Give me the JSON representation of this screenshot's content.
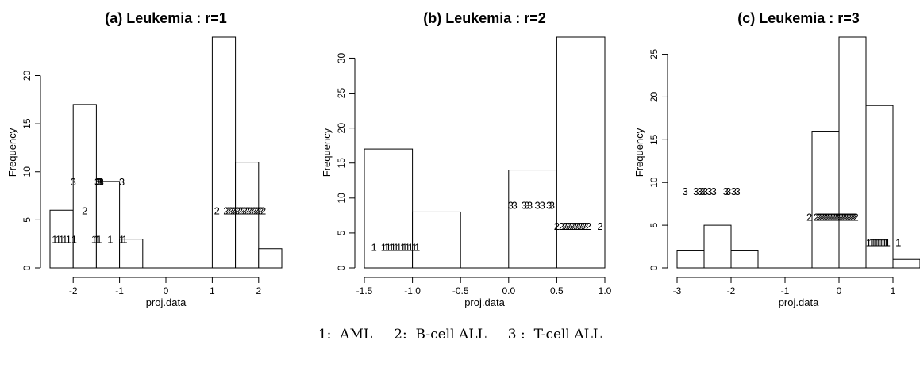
{
  "chart_data": [
    {
      "type": "bar",
      "title": "(a) Leukemia : r=1",
      "xlabel": "proj.data",
      "ylabel": "Frequency",
      "xlim": [
        -2.5,
        2.5
      ],
      "ylim": [
        0,
        24
      ],
      "xticks": [
        -2,
        -1,
        0,
        1,
        2
      ],
      "yticks": [
        0,
        5,
        10,
        15,
        20
      ],
      "bins": [
        {
          "x0": -2.5,
          "x1": -2.0,
          "count": 6
        },
        {
          "x0": -2.0,
          "x1": -1.5,
          "count": 17
        },
        {
          "x0": -1.5,
          "x1": -1.0,
          "count": 9
        },
        {
          "x0": -1.0,
          "x1": -0.5,
          "count": 3
        },
        {
          "x0": -0.5,
          "x1": 0.0,
          "count": 0
        },
        {
          "x0": 0.0,
          "x1": 0.5,
          "count": 0
        },
        {
          "x0": 0.5,
          "x1": 1.0,
          "count": 0
        },
        {
          "x0": 1.0,
          "x1": 1.5,
          "count": 24
        },
        {
          "x0": 1.5,
          "x1": 2.0,
          "count": 11
        },
        {
          "x0": 2.0,
          "x1": 2.5,
          "count": 2
        }
      ],
      "point_labels": [
        {
          "label": "1",
          "y": 3,
          "x": [
            -2.4,
            -2.32,
            -2.25,
            -2.18,
            -2.1,
            -1.98,
            -1.55,
            -1.5,
            -1.47,
            -1.44,
            -1.2,
            -0.95,
            -0.89
          ]
        },
        {
          "label": "2",
          "y": 6,
          "x": [
            -1.75
          ]
        },
        {
          "label": "3",
          "y": 9,
          "x": [
            -2.0,
            -1.48,
            -1.45,
            -1.43,
            -1.4,
            -0.95
          ]
        },
        {
          "label": "2",
          "y": 6,
          "x": [
            1.1,
            1.3,
            1.35,
            1.4,
            1.45,
            1.5,
            1.55,
            1.6,
            1.65,
            1.7,
            1.75,
            1.8,
            1.85,
            1.9,
            1.95,
            2.0,
            2.05,
            2.1
          ]
        }
      ]
    },
    {
      "type": "bar",
      "title": "(b) Leukemia : r=2",
      "xlabel": "proj.data",
      "ylabel": "Frequency",
      "xlim": [
        -1.5,
        1.0
      ],
      "ylim": [
        0,
        33
      ],
      "xticks": [
        -1.5,
        -1.0,
        -0.5,
        0.0,
        0.5,
        1.0
      ],
      "yticks": [
        0,
        5,
        10,
        15,
        20,
        25,
        30
      ],
      "bins": [
        {
          "x0": -1.5,
          "x1": -1.0,
          "count": 17
        },
        {
          "x0": -1.0,
          "x1": -0.5,
          "count": 8
        },
        {
          "x0": -0.5,
          "x1": 0.0,
          "count": 0
        },
        {
          "x0": 0.0,
          "x1": 0.5,
          "count": 14
        },
        {
          "x0": 0.5,
          "x1": 1.0,
          "count": 33
        }
      ],
      "point_labels": [
        {
          "label": "1",
          "y": 3,
          "x": [
            -1.4,
            -1.3,
            -1.27,
            -1.25,
            -1.22,
            -1.2,
            -1.17,
            -1.14,
            -1.1,
            -1.08,
            -1.05,
            -1.02,
            -0.98,
            -0.95
          ]
        },
        {
          "label": "3",
          "y": 9,
          "x": [
            0.02,
            0.06,
            0.16,
            0.19,
            0.22,
            0.3,
            0.35,
            0.42,
            0.45
          ]
        },
        {
          "label": "2",
          "y": 6,
          "x": [
            0.5,
            0.55,
            0.58,
            0.6,
            0.62,
            0.64,
            0.66,
            0.68,
            0.7,
            0.72,
            0.74,
            0.76,
            0.78,
            0.8,
            0.83,
            0.95
          ]
        }
      ]
    },
    {
      "type": "bar",
      "title": "(c) Leukemia : r=3",
      "xlabel": "proj.data",
      "ylabel": "Frequency",
      "xlim": [
        -3,
        1.5
      ],
      "ylim": [
        0,
        27
      ],
      "xticks": [
        -3,
        -2,
        -1,
        0,
        1
      ],
      "yticks": [
        0,
        5,
        10,
        15,
        20,
        25
      ],
      "bins": [
        {
          "x0": -3.0,
          "x1": -2.5,
          "count": 2
        },
        {
          "x0": -2.5,
          "x1": -2.0,
          "count": 5
        },
        {
          "x0": -2.0,
          "x1": -1.5,
          "count": 2
        },
        {
          "x0": -1.5,
          "x1": -1.0,
          "count": 0
        },
        {
          "x0": -1.0,
          "x1": -0.5,
          "count": 0
        },
        {
          "x0": -0.5,
          "x1": 0.0,
          "count": 16
        },
        {
          "x0": 0.0,
          "x1": 0.5,
          "count": 27
        },
        {
          "x0": 0.5,
          "x1": 1.0,
          "count": 19
        },
        {
          "x0": 1.0,
          "x1": 1.5,
          "count": 1
        }
      ],
      "point_labels": [
        {
          "label": "3",
          "y": 9,
          "x": [
            -2.85,
            -2.65,
            -2.58,
            -2.53,
            -2.48,
            -2.4,
            -2.32,
            -2.1,
            -2.05,
            -1.95,
            -1.88
          ]
        },
        {
          "label": "2",
          "y": 6,
          "x": [
            -0.55,
            -0.42,
            -0.38,
            -0.35,
            -0.32,
            -0.29,
            -0.26,
            -0.23,
            -0.2,
            -0.17,
            -0.14,
            -0.11,
            -0.08,
            -0.05,
            -0.02,
            0.01,
            0.04,
            0.07,
            0.1,
            0.13,
            0.16,
            0.19,
            0.22,
            0.25,
            0.28,
            0.31
          ]
        },
        {
          "label": "1",
          "y": 3,
          "x": [
            0.55,
            0.6,
            0.63,
            0.66,
            0.69,
            0.72,
            0.75,
            0.78,
            0.81,
            0.84,
            0.87,
            0.9,
            1.1
          ]
        }
      ]
    }
  ],
  "legend": {
    "text": "1:  AML     2:  B-cell ALL     3 :  T-cell ALL"
  }
}
